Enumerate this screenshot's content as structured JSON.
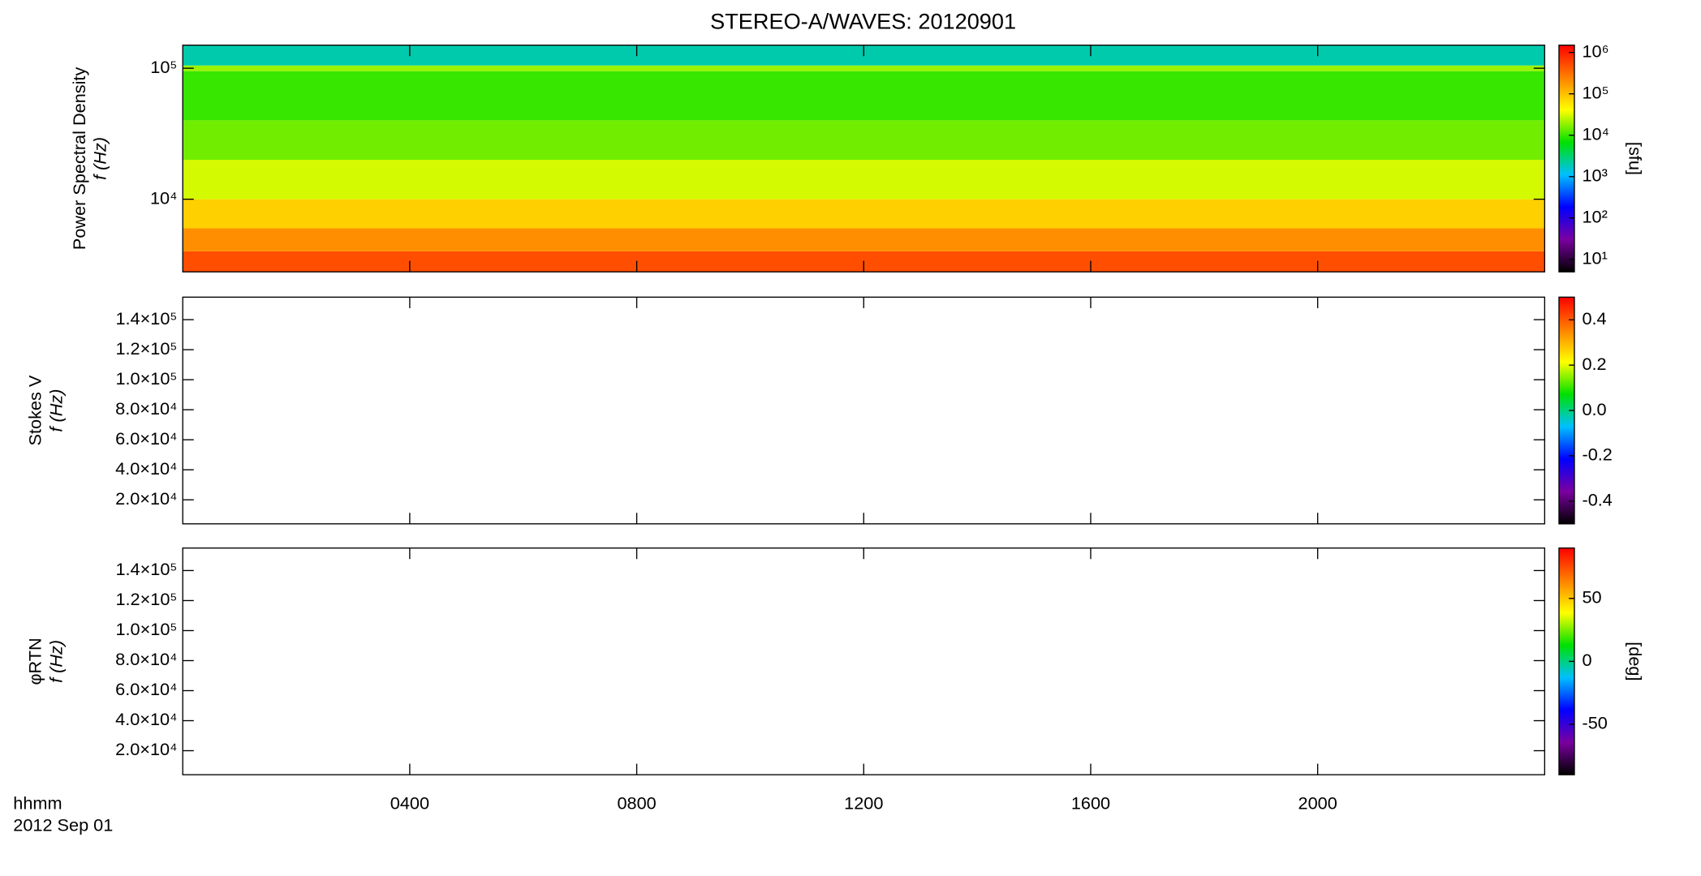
{
  "title": "STEREO-A/WAVES: 20120901",
  "x_label": "hhmm",
  "date_label": "2012 Sep 01",
  "chart_data": [
    {
      "type": "heatmap",
      "ylabel": [
        "Power Spectral Density",
        "f (Hz)"
      ],
      "log_y": true,
      "ylim": [
        2790,
        150000
      ],
      "yticks": [
        {
          "value": 10000,
          "label": "10⁴"
        },
        {
          "value": 100000,
          "label": "10⁵"
        }
      ],
      "xlim": [
        0,
        24
      ],
      "y_bins": [
        2790,
        4000,
        6000,
        10000,
        20000,
        40000,
        95000,
        105000,
        150000
      ],
      "z": [
        500000,
        200000,
        80000,
        30000,
        15000,
        10000,
        20000,
        2000
      ],
      "colorbar": {
        "log": true,
        "lim": [
          5,
          1500000
        ],
        "label": "[sfu]",
        "ticks": [
          {
            "value": 10,
            "label": "10¹"
          },
          {
            "value": 100,
            "label": "10²"
          },
          {
            "value": 1000,
            "label": "10³"
          },
          {
            "value": 10000,
            "label": "10⁴"
          },
          {
            "value": 100000,
            "label": "10⁵"
          },
          {
            "value": 1000000,
            "label": "10⁶"
          }
        ],
        "colors": [
          "#000000",
          "#7a00a0",
          "#0000ff",
          "#00c0ff",
          "#00e000",
          "#ffff00",
          "#ff8000",
          "#ff0000"
        ]
      }
    },
    {
      "type": "empty",
      "ylabel": [
        "Stokes V",
        "f (Hz)"
      ],
      "ylim": [
        4000,
        155000
      ],
      "yticks": [
        {
          "value": 20000,
          "label": "2.0×10⁴"
        },
        {
          "value": 40000,
          "label": "4.0×10⁴"
        },
        {
          "value": 60000,
          "label": "6.0×10⁴"
        },
        {
          "value": 80000,
          "label": "8.0×10⁴"
        },
        {
          "value": 100000,
          "label": "1.0×10⁵"
        },
        {
          "value": 120000,
          "label": "1.2×10⁵"
        },
        {
          "value": 140000,
          "label": "1.4×10⁵"
        }
      ],
      "xlim": [
        0,
        24
      ],
      "colorbar": {
        "log": false,
        "lim": [
          -0.5,
          0.5
        ],
        "ticks": [
          -0.4,
          -0.2,
          {
            "value": 0,
            "label": "0.0"
          },
          0.2,
          0.4
        ],
        "colors": [
          "#000000",
          "#7a00a0",
          "#0000ff",
          "#00c0ff",
          "#00e000",
          "#ffff00",
          "#ff8000",
          "#ff0000"
        ]
      }
    },
    {
      "type": "empty",
      "ylabel": [
        "φRTN",
        "f (Hz)"
      ],
      "ylim": [
        4000,
        155000
      ],
      "yticks": [
        {
          "value": 20000,
          "label": "2.0×10⁴"
        },
        {
          "value": 40000,
          "label": "4.0×10⁴"
        },
        {
          "value": 60000,
          "label": "6.0×10⁴"
        },
        {
          "value": 80000,
          "label": "8.0×10⁴"
        },
        {
          "value": 100000,
          "label": "1.0×10⁵"
        },
        {
          "value": 120000,
          "label": "1.2×10⁵"
        },
        {
          "value": 140000,
          "label": "1.4×10⁵"
        }
      ],
      "xlim": [
        0,
        24
      ],
      "xticks": [
        {
          "value": 4,
          "label": "0400"
        },
        {
          "value": 8,
          "label": "0800"
        },
        {
          "value": 12,
          "label": "1200"
        },
        {
          "value": 16,
          "label": "1600"
        },
        {
          "value": 20,
          "label": "2000"
        }
      ],
      "colorbar": {
        "log": false,
        "lim": [
          -90,
          90
        ],
        "label": "[deg]",
        "ticks": [
          -50,
          0,
          50
        ],
        "colors": [
          "#000000",
          "#7a00a0",
          "#0000ff",
          "#00c0ff",
          "#00e000",
          "#ffff00",
          "#ff8000",
          "#ff0000"
        ]
      }
    }
  ]
}
